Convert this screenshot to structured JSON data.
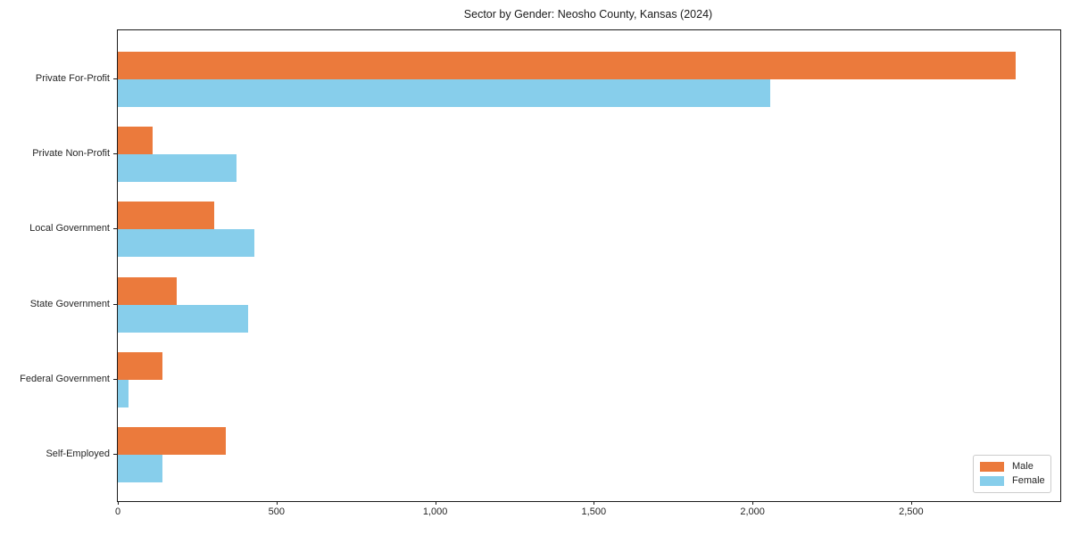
{
  "chart_data": {
    "type": "bar",
    "orientation": "horizontal",
    "title": "Sector by Gender: Neosho County, Kansas (2024)",
    "categories": [
      "Private For-Profit",
      "Private Non-Profit",
      "Local Government",
      "State Government",
      "Federal Government",
      "Self-Employed"
    ],
    "series": [
      {
        "name": "Male",
        "color": "#eb7a3c",
        "values": [
          2830,
          110,
          305,
          185,
          140,
          340
        ]
      },
      {
        "name": "Female",
        "color": "#87ceeb",
        "values": [
          2055,
          375,
          430,
          410,
          35,
          140
        ]
      }
    ],
    "xlabel": "",
    "ylabel": "",
    "xlim": [
      0,
      2970
    ],
    "xticks": [
      0,
      500,
      1000,
      1500,
      2000,
      2500
    ],
    "xtick_labels": [
      "0",
      "500",
      "1,000",
      "1,500",
      "2,000",
      "2,500"
    ],
    "grid": false,
    "legend_position": "lower right",
    "spine_color": "#1a1a1a"
  }
}
